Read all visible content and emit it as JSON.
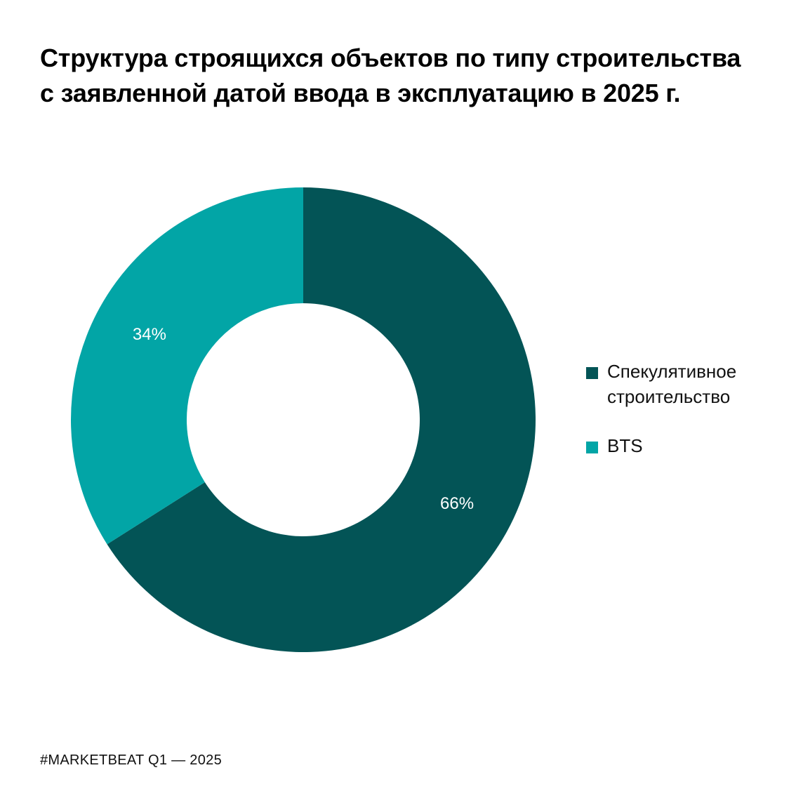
{
  "chart_data": {
    "type": "pie",
    "donut": true,
    "title_lines": [
      "Структура строящихся объектов по типу строительства",
      "с заявленной датой ввода в эксплуатацию в 2025 г."
    ],
    "categories": [
      "Спекулятивное строительство",
      "BTS"
    ],
    "values": [
      66,
      34
    ],
    "labels": [
      "66%",
      "34%"
    ],
    "colors": [
      "#035456",
      "#02A5A6"
    ],
    "legend_placement": "right",
    "start": "12 o'clock",
    "direction": "clockwise"
  },
  "legend": {
    "items": [
      {
        "lines": [
          "Спекулятивное",
          "строительство"
        ],
        "color": "#035456"
      },
      {
        "lines": [
          "BTS"
        ],
        "color": "#02A5A6"
      }
    ]
  },
  "footer": {
    "text": "#MARKETBEAT Q1  —  2025"
  }
}
